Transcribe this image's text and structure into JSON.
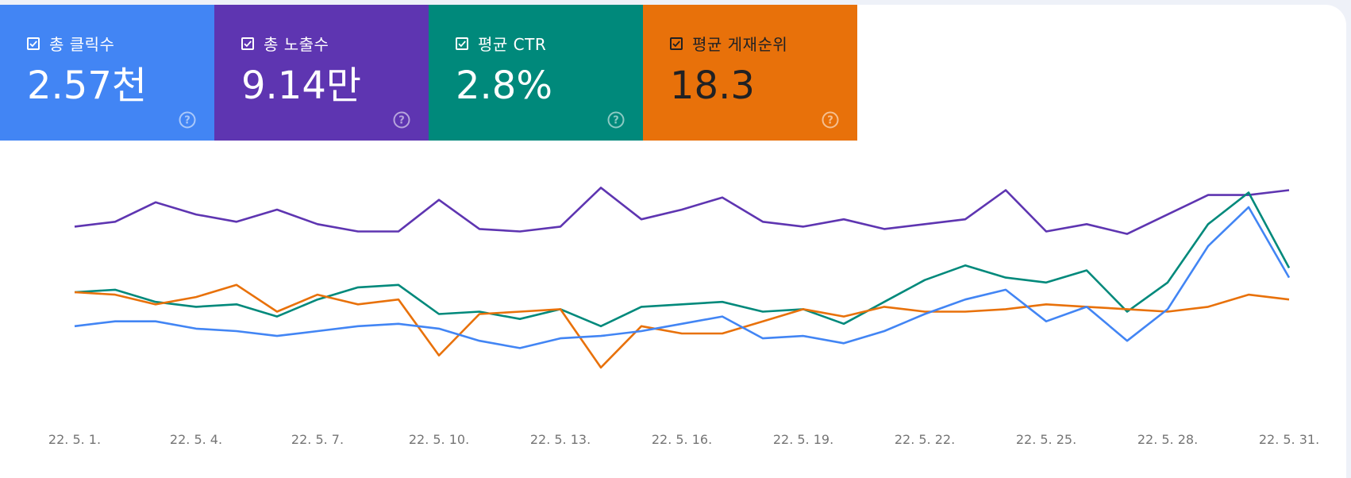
{
  "metrics": [
    {
      "label": "총 클릭수",
      "value": "2.57천",
      "color": "#4285f4",
      "checked": true,
      "help_icon": "question-circle-icon"
    },
    {
      "label": "총 노출수",
      "value": "9.14만",
      "color": "#5e35b1",
      "checked": true,
      "help_icon": "question-circle-icon"
    },
    {
      "label": "평균 CTR",
      "value": "2.8%",
      "color": "#00897b",
      "checked": true,
      "help_icon": "question-circle-icon"
    },
    {
      "label": "평균 게재순위",
      "value": "18.3",
      "color": "#e8710a",
      "checked": true,
      "help_icon": "question-circle-icon"
    }
  ],
  "chart_data": {
    "type": "line",
    "x": [
      "22. 5. 1.",
      "22. 5. 2.",
      "22. 5. 3.",
      "22. 5. 4.",
      "22. 5. 5.",
      "22. 5. 6.",
      "22. 5. 7.",
      "22. 5. 8.",
      "22. 5. 9.",
      "22. 5. 10.",
      "22. 5. 11.",
      "22. 5. 12.",
      "22. 5. 13.",
      "22. 5. 14.",
      "22. 5. 15.",
      "22. 5. 16.",
      "22. 5. 17.",
      "22. 5. 18.",
      "22. 5. 19.",
      "22. 5. 20.",
      "22. 5. 21.",
      "22. 5. 22.",
      "22. 5. 23.",
      "22. 5. 24.",
      "22. 5. 25.",
      "22. 5. 26.",
      "22. 5. 27.",
      "22. 5. 28.",
      "22. 5. 29.",
      "22. 5. 30.",
      "22. 5. 31."
    ],
    "tick_labels": [
      "22. 5. 1.",
      "22. 5. 4.",
      "22. 5. 7.",
      "22. 5. 10.",
      "22. 5. 13.",
      "22. 5. 16.",
      "22. 5. 19.",
      "22. 5. 22.",
      "22. 5. 25.",
      "22. 5. 28.",
      "22. 5. 31."
    ],
    "ylim": [
      0,
      100
    ],
    "grid": false,
    "series": [
      {
        "color": "#5e35b1",
        "values": [
          77,
          79,
          87,
          82,
          79,
          84,
          78,
          75,
          75,
          88,
          76,
          75,
          77,
          93,
          80,
          84,
          89,
          79,
          77,
          80,
          76,
          78,
          80,
          92,
          75,
          78,
          74,
          82,
          90,
          90,
          92
        ]
      },
      {
        "color": "#00897b",
        "values": [
          50,
          51,
          46,
          44,
          45,
          40,
          47,
          52,
          53,
          41,
          42,
          39,
          43,
          36,
          44,
          45,
          46,
          42,
          43,
          37,
          46,
          55,
          61,
          56,
          54,
          59,
          42,
          54,
          78,
          91,
          60
        ]
      },
      {
        "color": "#e8710a",
        "values": [
          50,
          49,
          45,
          48,
          53,
          42,
          49,
          45,
          47,
          24,
          41,
          42,
          43,
          19,
          36,
          33,
          33,
          38,
          43,
          40,
          44,
          42,
          42,
          43,
          45,
          44,
          43,
          42,
          44,
          49,
          47
        ]
      },
      {
        "color": "#4285f4",
        "values": [
          36,
          38,
          38,
          35,
          34,
          32,
          34,
          36,
          37,
          35,
          30,
          27,
          31,
          32,
          34,
          37,
          40,
          31,
          32,
          29,
          34,
          41,
          47,
          51,
          38,
          44,
          30,
          43,
          69,
          85,
          56
        ]
      }
    ]
  }
}
